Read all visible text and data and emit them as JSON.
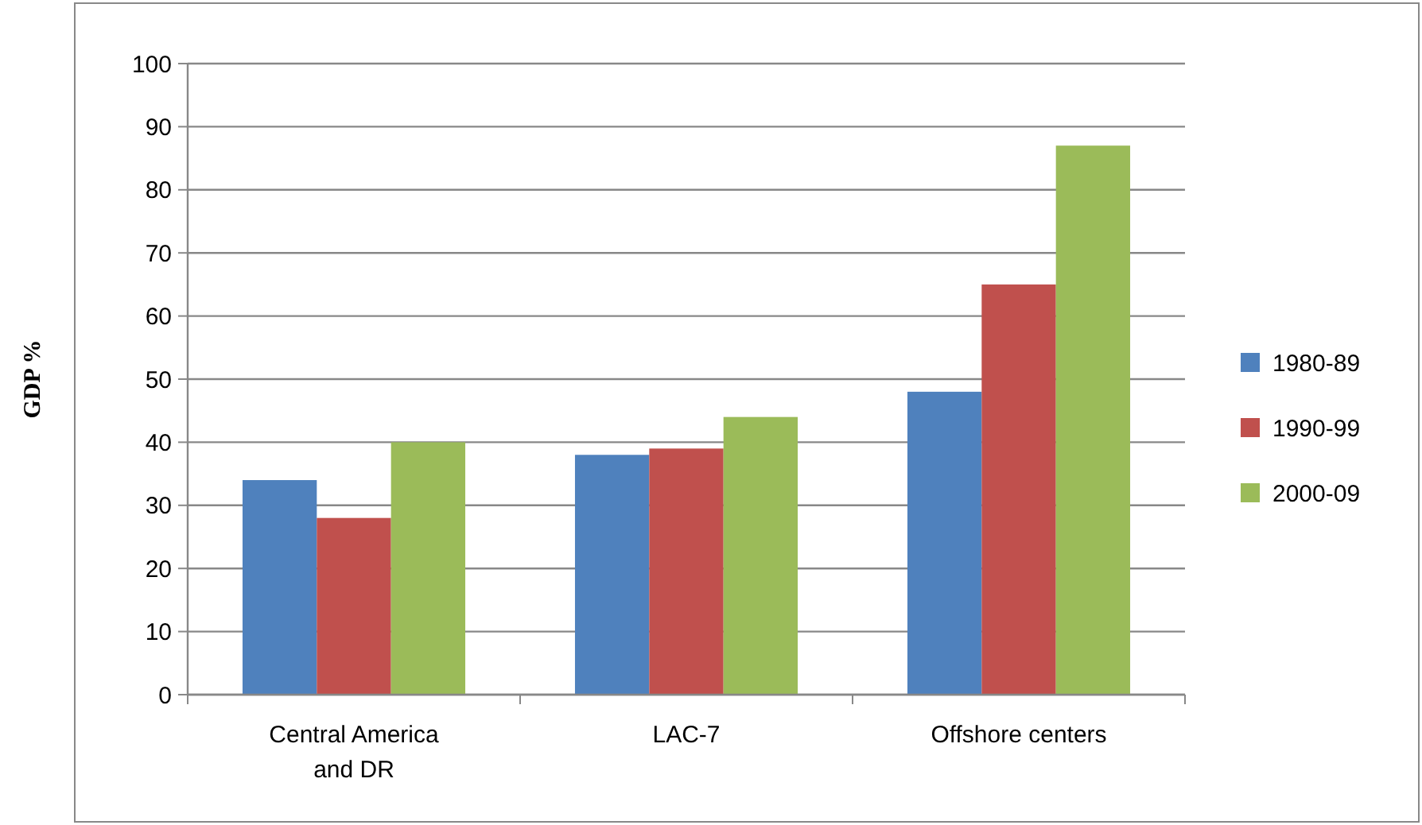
{
  "chart_data": {
    "type": "bar",
    "ylabel": "GDP %",
    "categories": [
      "Central America and DR",
      "LAC-7",
      "Offshore centers"
    ],
    "series": [
      {
        "name": "1980-89",
        "color": "#4f81bd",
        "values": [
          34,
          38,
          48
        ]
      },
      {
        "name": "1990-99",
        "color": "#c0504d",
        "values": [
          28,
          39,
          65
        ]
      },
      {
        "name": "2000-09",
        "color": "#9bbb59",
        "values": [
          40,
          44,
          87
        ]
      }
    ],
    "ylim": [
      0,
      100
    ],
    "yticks": [
      0,
      10,
      20,
      30,
      40,
      50,
      60,
      70,
      80,
      90,
      100
    ],
    "grid": "y",
    "legend": "right"
  }
}
